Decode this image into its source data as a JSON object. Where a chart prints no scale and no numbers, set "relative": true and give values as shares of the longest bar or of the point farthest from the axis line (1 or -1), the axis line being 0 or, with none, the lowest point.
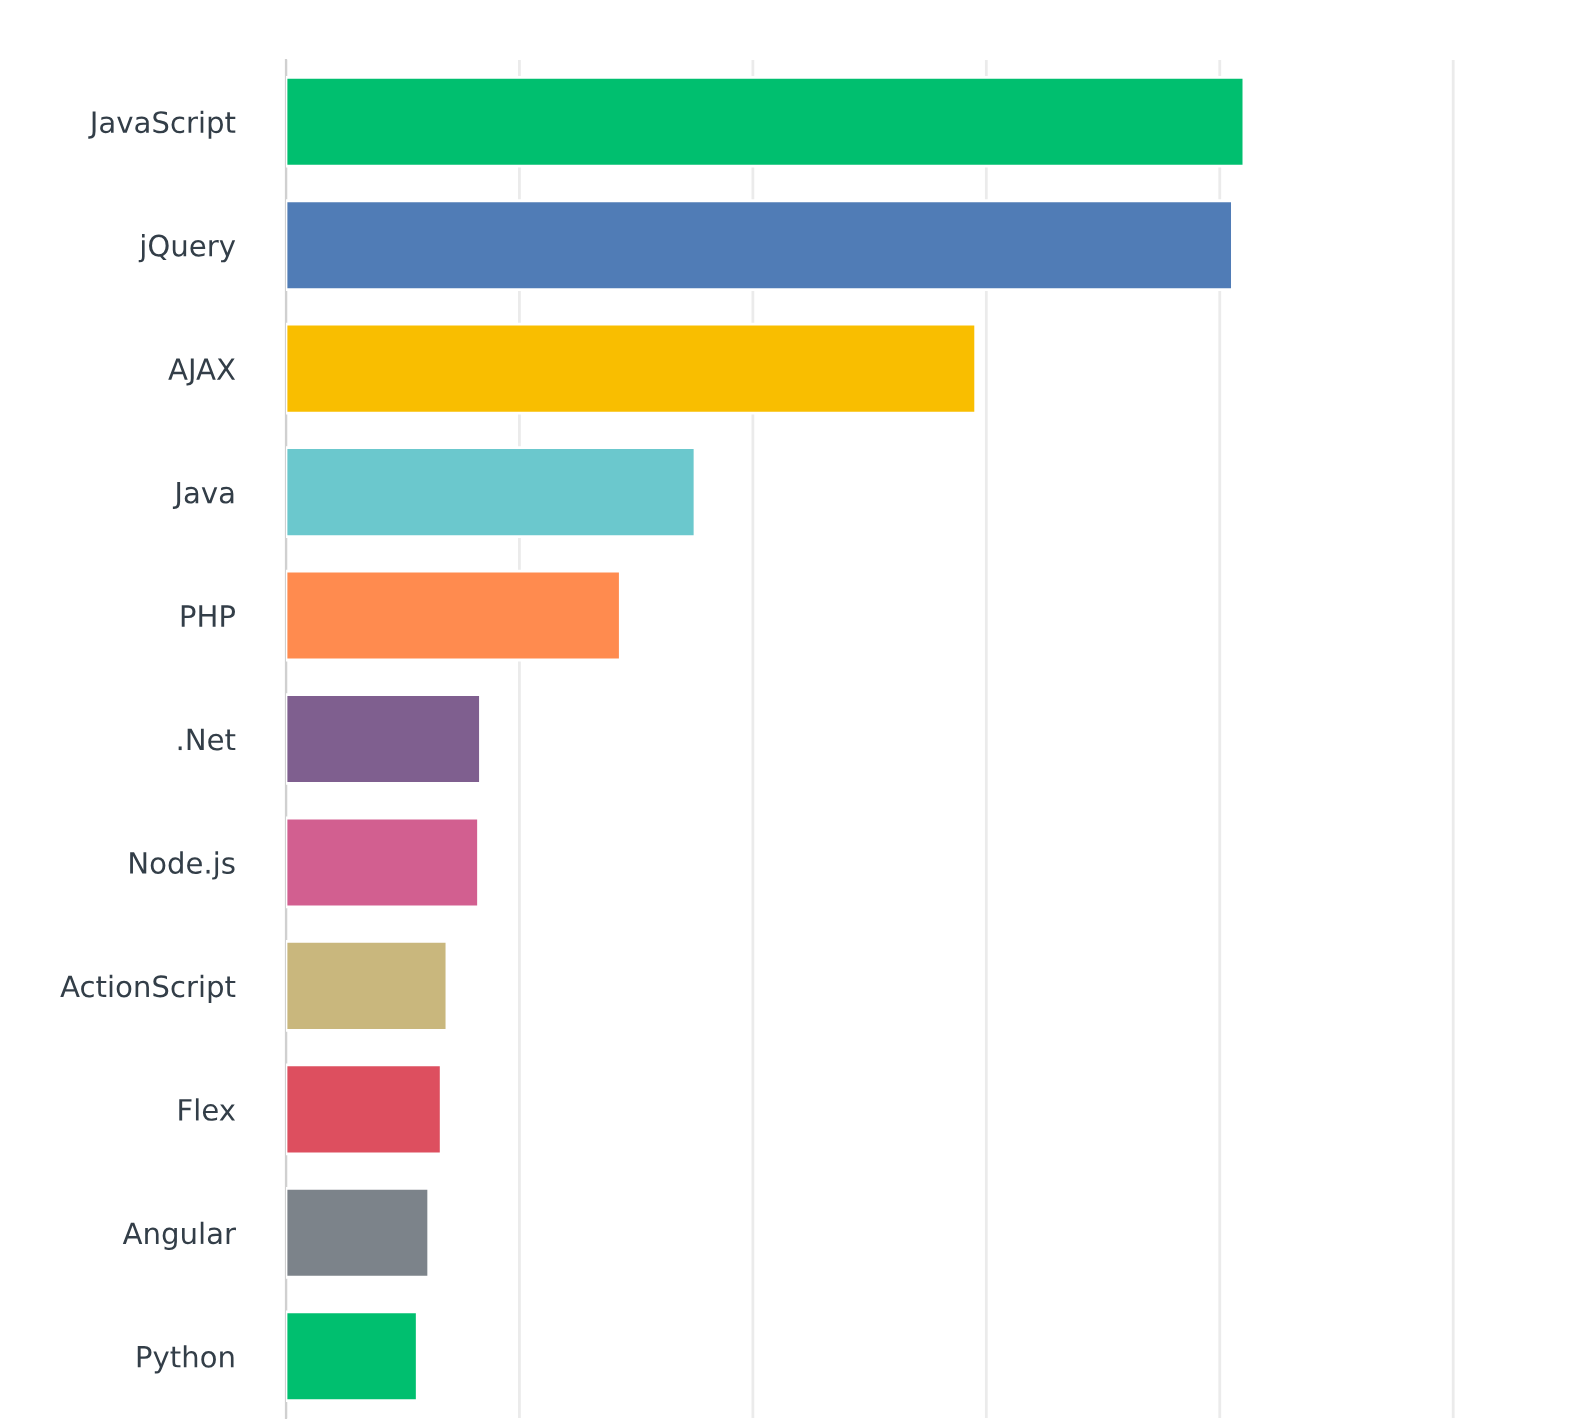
{
  "chart_data": {
    "type": "bar",
    "orientation": "horizontal",
    "relative": true,
    "grid": "x",
    "categories": [
      "JavaScript",
      "jQuery",
      "AJAX",
      "Java",
      "PHP",
      ".Net",
      "Node.js",
      "ActionScript",
      "Flex",
      "Angular",
      "Python"
    ],
    "values": [
      1,
      0.988,
      0.72,
      0.427,
      0.349,
      0.203,
      0.201,
      0.168,
      0.162,
      0.149,
      0.137
    ],
    "colors": [
      "#00bf6f",
      "#507cb6",
      "#f9be00",
      "#6bc8cd",
      "#ff8b4f",
      "#7f5f8f",
      "#d25f90",
      "#c9b77d",
      "#dd4f5f",
      "#7c838a",
      "#00bf6f"
    ]
  }
}
